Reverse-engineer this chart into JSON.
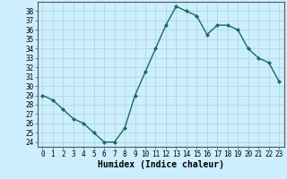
{
  "x": [
    0,
    1,
    2,
    3,
    4,
    5,
    6,
    7,
    8,
    9,
    10,
    11,
    12,
    13,
    14,
    15,
    16,
    17,
    18,
    19,
    20,
    21,
    22,
    23
  ],
  "y": [
    29,
    28.5,
    27.5,
    26.5,
    26,
    25,
    24,
    24,
    25.5,
    29,
    31.5,
    34,
    36.5,
    38.5,
    38,
    37.5,
    35.5,
    36.5,
    36.5,
    36,
    34,
    33,
    32.5,
    30.5
  ],
  "line_color": "#1a6b5a",
  "marker": "D",
  "marker_size": 2.0,
  "bg_color": "#cceeff",
  "grid_color": "#aad4d4",
  "xlabel": "Humidex (Indice chaleur)",
  "xlabel_fontsize": 7,
  "xlim": [
    -0.5,
    23.5
  ],
  "ylim": [
    23.5,
    39
  ],
  "ytick_min": 24,
  "ytick_max": 38,
  "ytick_step": 1,
  "xticks": [
    0,
    1,
    2,
    3,
    4,
    5,
    6,
    7,
    8,
    9,
    10,
    11,
    12,
    13,
    14,
    15,
    16,
    17,
    18,
    19,
    20,
    21,
    22,
    23
  ],
  "tick_fontsize": 5.5,
  "linewidth": 1.0
}
